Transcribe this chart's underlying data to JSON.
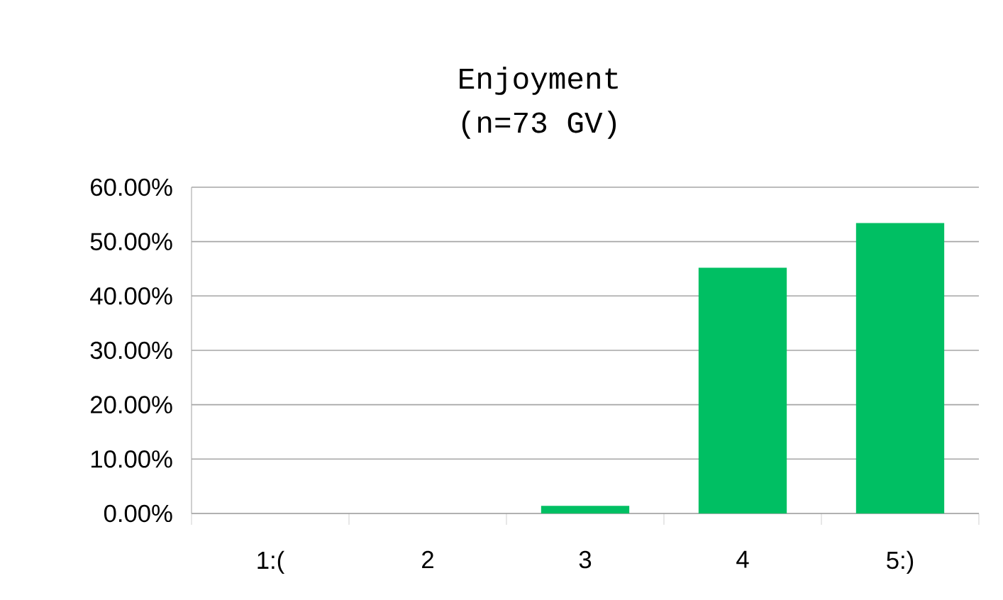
{
  "chart_data": {
    "type": "bar",
    "title": "Enjoyment",
    "subtitle": "(n=73 GV)",
    "categories": [
      "1:(",
      "2",
      "3",
      "4",
      "5:)"
    ],
    "values": [
      0,
      0,
      1.4,
      45.2,
      53.4
    ],
    "color": "#00bf63",
    "ylim": [
      0,
      60
    ],
    "yticks": [
      {
        "value": 0,
        "label": "0.00%"
      },
      {
        "value": 10,
        "label": "10.00%"
      },
      {
        "value": 20,
        "label": "20.00%"
      },
      {
        "value": 30,
        "label": "30.00%"
      },
      {
        "value": 40,
        "label": "40.00%"
      },
      {
        "value": 50,
        "label": "50.00%"
      },
      {
        "value": 60,
        "label": "60.00%"
      }
    ],
    "grid": "y"
  }
}
